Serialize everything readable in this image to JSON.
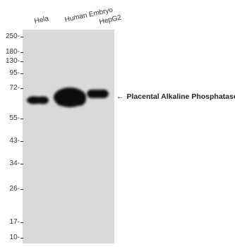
{
  "lanes": [
    "Hela",
    "Human Embryo",
    "HepG2"
  ],
  "markers": [
    "250-",
    "180-",
    "130-",
    "95-",
    "72-",
    "55-",
    "43-",
    "34-",
    "26-",
    "17-",
    "10-"
  ],
  "band_label": "Placental Alkaline Phosphatase",
  "arrow": "←",
  "colors": {
    "membrane": "#d9d9d9",
    "band": "#0d0d0d"
  }
}
